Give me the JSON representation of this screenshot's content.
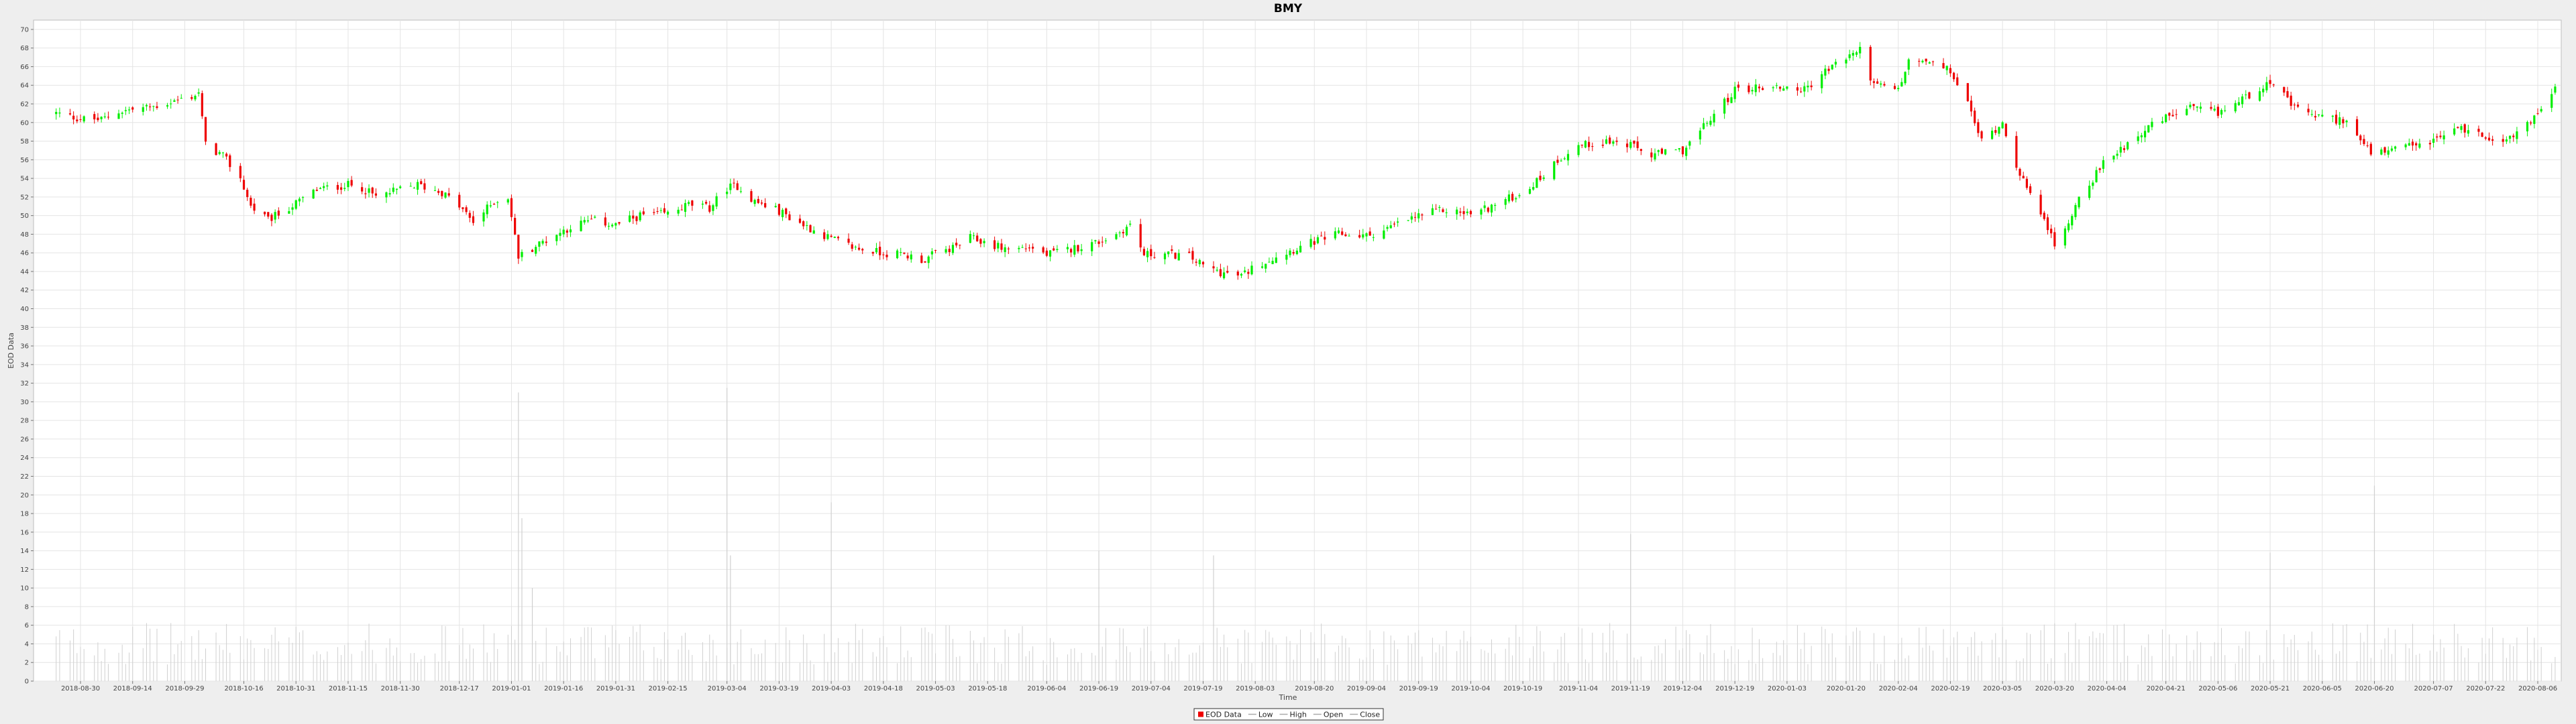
{
  "chart_data": {
    "type": "candlestick",
    "title": "BMY",
    "xlabel": "Time",
    "ylabel": "EOD Data",
    "ylim": [
      0,
      71
    ],
    "grid": true,
    "legend_position": "bottom-center",
    "colors": {
      "up": "#00ee00",
      "down": "#ee0000",
      "plot_background": "#ffffff",
      "gridline": "#e4e4e4",
      "volume": "#d0d0d0"
    },
    "y_ticks": [
      0,
      2,
      4,
      6,
      8,
      10,
      12,
      14,
      16,
      18,
      20,
      22,
      24,
      26,
      28,
      30,
      32,
      34,
      36,
      38,
      40,
      42,
      44,
      46,
      48,
      50,
      52,
      54,
      56,
      58,
      60,
      62,
      64,
      66,
      68,
      70
    ],
    "x_ticks": [
      "2018-08-30",
      "2018-09-14",
      "2018-09-29",
      "2018-10-16",
      "2018-10-31",
      "2018-11-15",
      "2018-11-30",
      "2018-12-17",
      "2019-01-01",
      "2019-01-16",
      "2019-01-31",
      "2019-02-15",
      "2019-03-04",
      "2019-03-19",
      "2019-04-03",
      "2019-04-18",
      "2019-05-03",
      "2019-05-18",
      "2019-06-04",
      "2019-06-19",
      "2019-07-04",
      "2019-07-19",
      "2019-08-03",
      "2019-08-20",
      "2019-09-04",
      "2019-09-19",
      "2019-10-04",
      "2019-10-19",
      "2019-11-04",
      "2019-11-19",
      "2019-12-04",
      "2019-12-19",
      "2020-01-03",
      "2020-01-20",
      "2020-02-04",
      "2020-02-19",
      "2020-03-05",
      "2020-03-20",
      "2020-04-04",
      "2020-04-21",
      "2020-05-06",
      "2020-05-21",
      "2020-06-05",
      "2020-06-20",
      "2020-07-07",
      "2020-07-22",
      "2020-08-06"
    ],
    "legend": [
      {
        "label": "EOD Data",
        "symbol": "box",
        "color": "#ee0000"
      },
      {
        "label": "Low",
        "symbol": "line",
        "color": "#aaaaaa"
      },
      {
        "label": "High",
        "symbol": "line",
        "color": "#aaaaaa"
      },
      {
        "label": "Open",
        "symbol": "line",
        "color": "#aaaaaa"
      },
      {
        "label": "Close",
        "symbol": "line",
        "color": "#aaaaaa"
      }
    ],
    "close_path": [
      [
        "2018-08-23",
        61.0
      ],
      [
        "2018-08-30",
        60.4
      ],
      [
        "2018-09-05",
        60.3
      ],
      [
        "2018-09-10",
        61.2
      ],
      [
        "2018-09-20",
        61.7
      ],
      [
        "2018-10-01",
        62.8
      ],
      [
        "2018-10-03",
        63.2
      ],
      [
        "2018-10-05",
        57.6
      ],
      [
        "2018-10-10",
        56.4
      ],
      [
        "2018-10-15",
        54.0
      ],
      [
        "2018-10-18",
        51.0
      ],
      [
        "2018-10-23",
        49.5
      ],
      [
        "2018-10-31",
        51.3
      ],
      [
        "2018-11-06",
        52.8
      ],
      [
        "2018-11-15",
        53.3
      ],
      [
        "2018-11-19",
        53.0
      ],
      [
        "2018-11-23",
        52.0
      ],
      [
        "2018-11-30",
        52.8
      ],
      [
        "2018-12-05",
        53.3
      ],
      [
        "2018-12-12",
        52.5
      ],
      [
        "2018-12-17",
        51.0
      ],
      [
        "2018-12-21",
        49.3
      ],
      [
        "2018-12-27",
        51.5
      ],
      [
        "2018-12-31",
        52.0
      ],
      [
        "2019-01-03",
        45.6
      ],
      [
        "2019-01-10",
        47.2
      ],
      [
        "2019-01-18",
        48.8
      ],
      [
        "2019-01-24",
        49.5
      ],
      [
        "2019-01-31",
        49.0
      ],
      [
        "2019-02-07",
        50.0
      ],
      [
        "2019-02-15",
        50.2
      ],
      [
        "2019-02-21",
        51.2
      ],
      [
        "2019-02-27",
        50.8
      ],
      [
        "2019-03-04",
        53.0
      ],
      [
        "2019-03-07",
        53.2
      ],
      [
        "2019-03-12",
        51.5
      ],
      [
        "2019-03-19",
        50.5
      ],
      [
        "2019-03-26",
        49.0
      ],
      [
        "2019-04-03",
        47.5
      ],
      [
        "2019-04-10",
        46.5
      ],
      [
        "2019-04-18",
        46.0
      ],
      [
        "2019-04-24",
        45.8
      ],
      [
        "2019-04-30",
        45.2
      ],
      [
        "2019-05-03",
        46.0
      ],
      [
        "2019-05-08",
        46.5
      ],
      [
        "2019-05-13",
        47.6
      ],
      [
        "2019-05-18",
        47.0
      ],
      [
        "2019-05-24",
        46.4
      ],
      [
        "2019-05-30",
        46.6
      ],
      [
        "2019-06-04",
        45.8
      ],
      [
        "2019-06-10",
        46.3
      ],
      [
        "2019-06-19",
        47.2
      ],
      [
        "2019-06-24",
        48.0
      ],
      [
        "2019-06-28",
        49.0
      ],
      [
        "2019-07-02",
        45.8
      ],
      [
        "2019-07-08",
        45.9
      ],
      [
        "2019-07-15",
        45.6
      ],
      [
        "2019-07-19",
        44.6
      ],
      [
        "2019-07-25",
        43.8
      ],
      [
        "2019-07-30",
        43.5
      ],
      [
        "2019-08-03",
        44.6
      ],
      [
        "2019-08-10",
        45.8
      ],
      [
        "2019-08-20",
        47.2
      ],
      [
        "2019-08-27",
        48.0
      ],
      [
        "2019-09-04",
        47.8
      ],
      [
        "2019-09-10",
        48.6
      ],
      [
        "2019-09-19",
        50.0
      ],
      [
        "2019-09-26",
        50.6
      ],
      [
        "2019-10-04",
        50.2
      ],
      [
        "2019-10-10",
        51.0
      ],
      [
        "2019-10-19",
        52.5
      ],
      [
        "2019-10-24",
        54.0
      ],
      [
        "2019-10-29",
        56.0
      ],
      [
        "2019-11-04",
        57.5
      ],
      [
        "2019-11-12",
        58.0
      ],
      [
        "2019-11-19",
        57.5
      ],
      [
        "2019-11-25",
        56.5
      ],
      [
        "2019-12-04",
        57.0
      ],
      [
        "2019-12-10",
        59.5
      ],
      [
        "2019-12-19",
        63.5
      ],
      [
        "2019-12-26",
        63.8
      ],
      [
        "2020-01-03",
        63.8
      ],
      [
        "2020-01-08",
        63.5
      ],
      [
        "2020-01-14",
        65.5
      ],
      [
        "2020-01-20",
        67.0
      ],
      [
        "2020-01-24",
        67.8
      ],
      [
        "2020-01-28",
        64.0
      ],
      [
        "2020-02-04",
        63.5
      ],
      [
        "2020-02-07",
        66.5
      ],
      [
        "2020-02-12",
        66.5
      ],
      [
        "2020-02-19",
        65.5
      ],
      [
        "2020-02-24",
        62.0
      ],
      [
        "2020-02-28",
        58.0
      ],
      [
        "2020-03-05",
        60.0
      ],
      [
        "2020-03-09",
        55.5
      ],
      [
        "2020-03-13",
        52.0
      ],
      [
        "2020-03-17",
        50.0
      ],
      [
        "2020-03-20",
        46.5
      ],
      [
        "2020-03-23",
        48.5
      ],
      [
        "2020-03-27",
        52.0
      ],
      [
        "2020-04-04",
        56.0
      ],
      [
        "2020-04-14",
        59.0
      ],
      [
        "2020-04-21",
        60.5
      ],
      [
        "2020-04-28",
        61.5
      ],
      [
        "2020-05-06",
        61.0
      ],
      [
        "2020-05-13",
        62.5
      ],
      [
        "2020-05-21",
        64.5
      ],
      [
        "2020-05-28",
        61.5
      ],
      [
        "2020-06-05",
        60.5
      ],
      [
        "2020-06-12",
        60.2
      ],
      [
        "2020-06-17",
        57.5
      ],
      [
        "2020-06-20",
        56.5
      ],
      [
        "2020-06-26",
        57.0
      ],
      [
        "2020-07-07",
        58.0
      ],
      [
        "2020-07-14",
        59.5
      ],
      [
        "2020-07-22",
        58.5
      ],
      [
        "2020-07-29",
        58.2
      ],
      [
        "2020-08-06",
        61.0
      ],
      [
        "2020-08-12",
        64.0
      ]
    ],
    "volume_spikes": [
      [
        "2019-01-03",
        31.0
      ],
      [
        "2019-01-04",
        17.5
      ],
      [
        "2019-01-07",
        10.0
      ],
      [
        "2019-03-04",
        31.5
      ],
      [
        "2019-03-05",
        13.5
      ],
      [
        "2019-04-03",
        19.2
      ],
      [
        "2019-06-19",
        14.0
      ],
      [
        "2019-07-22",
        13.5
      ],
      [
        "2019-11-19",
        15.8
      ],
      [
        "2020-06-20",
        21.0
      ],
      [
        "2020-05-21",
        13.8
      ]
    ],
    "volume_base": 5,
    "volume_max": 10
  }
}
